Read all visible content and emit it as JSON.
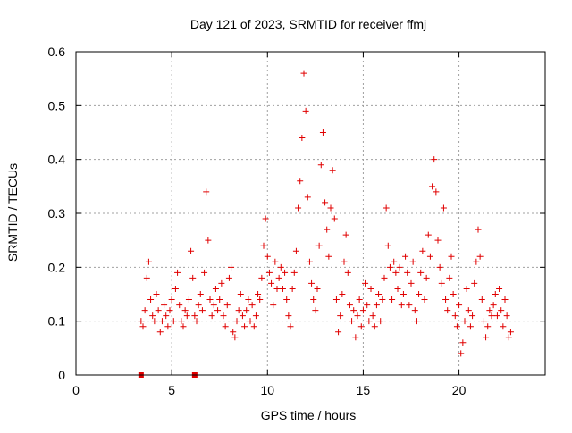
{
  "chart_data": {
    "type": "scatter",
    "title": "Day 121 of 2023, SRMTID for receiver ffmj",
    "xlabel": "GPS time / hours",
    "ylabel": "SRMTID / TECUs",
    "xlim": [
      0,
      24.5
    ],
    "ylim": [
      0,
      0.6
    ],
    "xticks": [
      0,
      5,
      10,
      15,
      20
    ],
    "xtick_labels": [
      "0",
      "5",
      "10",
      "15",
      "20"
    ],
    "yticks": [
      0,
      0.1,
      0.2,
      0.3,
      0.4,
      0.5,
      0.6
    ],
    "ytick_labels": [
      "0",
      "0.1",
      "0.2",
      "0.3",
      "0.4",
      "0.5",
      "0.6"
    ],
    "grid": true,
    "marker": "plus",
    "color": "#e00000",
    "series": [
      {
        "name": "SRMTID",
        "x": [
          3.4,
          3.5,
          3.6,
          3.7,
          3.8,
          3.9,
          4.0,
          4.1,
          4.2,
          4.3,
          4.4,
          4.5,
          4.6,
          4.7,
          4.8,
          4.9,
          5.0,
          5.1,
          5.2,
          5.3,
          5.4,
          5.5,
          5.6,
          5.7,
          5.8,
          5.9,
          6.0,
          6.1,
          6.2,
          6.3,
          6.4,
          6.5,
          6.6,
          6.7,
          6.8,
          6.9,
          7.0,
          7.1,
          7.2,
          7.3,
          7.4,
          7.5,
          7.6,
          7.7,
          7.8,
          7.9,
          8.0,
          8.1,
          8.2,
          8.3,
          8.4,
          8.5,
          8.6,
          8.7,
          8.8,
          8.9,
          9.0,
          9.1,
          9.2,
          9.3,
          9.4,
          9.5,
          9.6,
          9.7,
          9.8,
          9.9,
          10.0,
          10.1,
          10.2,
          10.3,
          10.4,
          10.5,
          10.6,
          10.7,
          10.8,
          10.9,
          11.0,
          11.1,
          11.2,
          11.3,
          11.4,
          11.5,
          11.6,
          11.7,
          11.8,
          11.9,
          12.0,
          12.1,
          12.2,
          12.3,
          12.4,
          12.5,
          12.6,
          12.7,
          12.8,
          12.9,
          13.0,
          13.1,
          13.2,
          13.3,
          13.4,
          13.5,
          13.6,
          13.7,
          13.8,
          13.9,
          14.0,
          14.1,
          14.2,
          14.3,
          14.4,
          14.5,
          14.6,
          14.7,
          14.8,
          14.9,
          15.0,
          15.1,
          15.2,
          15.3,
          15.4,
          15.5,
          15.6,
          15.7,
          15.8,
          15.9,
          16.0,
          16.1,
          16.2,
          16.3,
          16.4,
          16.5,
          16.6,
          16.7,
          16.8,
          16.9,
          17.0,
          17.1,
          17.2,
          17.3,
          17.4,
          17.5,
          17.6,
          17.7,
          17.8,
          17.9,
          18.0,
          18.1,
          18.2,
          18.3,
          18.4,
          18.5,
          18.6,
          18.7,
          18.8,
          18.9,
          19.0,
          19.1,
          19.2,
          19.3,
          19.4,
          19.5,
          19.6,
          19.7,
          19.8,
          19.9,
          20.0,
          20.1,
          20.2,
          20.3,
          20.4,
          20.5,
          20.6,
          20.7,
          20.8,
          20.9,
          21.0,
          21.1,
          21.2,
          21.3,
          21.4,
          21.5,
          21.6,
          21.7,
          21.8,
          21.9,
          22.0,
          22.1,
          22.2,
          22.3,
          22.4,
          22.5,
          22.6,
          22.7
        ],
        "y": [
          0.1,
          0.09,
          0.12,
          0.18,
          0.21,
          0.14,
          0.11,
          0.1,
          0.15,
          0.12,
          0.08,
          0.1,
          0.13,
          0.11,
          0.09,
          0.12,
          0.14,
          0.1,
          0.16,
          0.19,
          0.13,
          0.1,
          0.09,
          0.12,
          0.11,
          0.14,
          0.23,
          0.18,
          0.11,
          0.1,
          0.13,
          0.15,
          0.12,
          0.19,
          0.34,
          0.25,
          0.14,
          0.11,
          0.13,
          0.16,
          0.12,
          0.14,
          0.17,
          0.11,
          0.09,
          0.13,
          0.18,
          0.2,
          0.08,
          0.07,
          0.1,
          0.12,
          0.15,
          0.11,
          0.09,
          0.12,
          0.14,
          0.1,
          0.13,
          0.09,
          0.11,
          0.15,
          0.14,
          0.18,
          0.24,
          0.29,
          0.22,
          0.19,
          0.17,
          0.13,
          0.21,
          0.16,
          0.18,
          0.2,
          0.16,
          0.19,
          0.14,
          0.11,
          0.09,
          0.16,
          0.19,
          0.23,
          0.31,
          0.36,
          0.44,
          0.56,
          0.49,
          0.33,
          0.21,
          0.17,
          0.14,
          0.12,
          0.16,
          0.24,
          0.39,
          0.45,
          0.32,
          0.27,
          0.22,
          0.31,
          0.38,
          0.29,
          0.14,
          0.08,
          0.11,
          0.15,
          0.21,
          0.26,
          0.19,
          0.13,
          0.1,
          0.12,
          0.07,
          0.11,
          0.14,
          0.09,
          0.12,
          0.17,
          0.13,
          0.1,
          0.16,
          0.11,
          0.09,
          0.13,
          0.15,
          0.1,
          0.14,
          0.18,
          0.31,
          0.24,
          0.2,
          0.14,
          0.21,
          0.19,
          0.16,
          0.2,
          0.13,
          0.15,
          0.22,
          0.19,
          0.13,
          0.17,
          0.21,
          0.12,
          0.1,
          0.15,
          0.19,
          0.23,
          0.14,
          0.18,
          0.26,
          0.22,
          0.35,
          0.4,
          0.34,
          0.25,
          0.2,
          0.17,
          0.31,
          0.14,
          0.12,
          0.18,
          0.22,
          0.15,
          0.11,
          0.09,
          0.13,
          0.04,
          0.06,
          0.1,
          0.16,
          0.12,
          0.09,
          0.11,
          0.17,
          0.21,
          0.27,
          0.22,
          0.14,
          0.1,
          0.07,
          0.09,
          0.12,
          0.11,
          0.13,
          0.15,
          0.11,
          0.16,
          0.12,
          0.09,
          0.14,
          0.11,
          0.07,
          0.08
        ]
      }
    ],
    "gap_markers_x": [
      3.4,
      6.2
    ]
  }
}
